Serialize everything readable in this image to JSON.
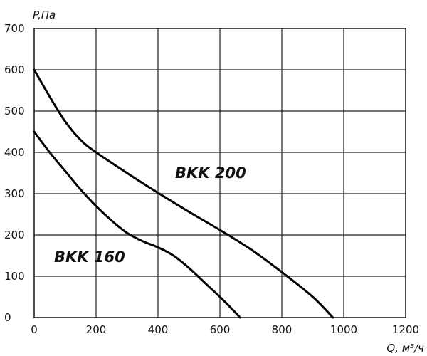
{
  "chart_data": {
    "type": "line",
    "ylabel": "P,Па",
    "xlabel": "Q, м³/ч",
    "xlim": [
      0,
      1200
    ],
    "ylim": [
      0,
      700
    ],
    "x_ticks": [
      "0",
      "200",
      "400",
      "600",
      "800",
      "1000",
      "1200"
    ],
    "y_ticks": [
      "0",
      "100",
      "200",
      "300",
      "400",
      "500",
      "600",
      "700"
    ],
    "grid": true,
    "series": [
      {
        "name": "BKK 200",
        "x": [
          0,
          50,
          100,
          150,
          200,
          300,
          400,
          500,
          600,
          700,
          800,
          900,
          965
        ],
        "y": [
          600,
          535,
          475,
          430,
          400,
          350,
          302,
          256,
          212,
          165,
          110,
          50,
          0
        ]
      },
      {
        "name": "BKK 160",
        "x": [
          0,
          50,
          100,
          150,
          200,
          250,
          300,
          350,
          400,
          450,
          500,
          550,
          600,
          640,
          665
        ],
        "y": [
          450,
          400,
          355,
          310,
          270,
          235,
          205,
          185,
          170,
          150,
          120,
          85,
          50,
          20,
          0
        ]
      }
    ]
  }
}
